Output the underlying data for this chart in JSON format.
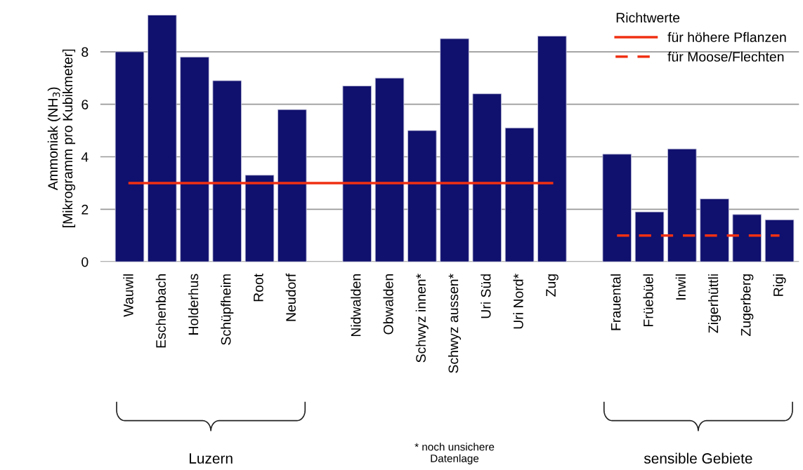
{
  "chart_data": {
    "type": "bar",
    "ylabel": "Ammoniak (NH$_{3}$)\n[Mikrogramm pro Kubikmeter]",
    "categories": [
      "Wauwil",
      "Eschenbach",
      "Holderhus",
      "Schüpfheim",
      "Root",
      "Neudorf",
      null,
      "Nidwalden",
      "Obwalden",
      "Schwyz innen*",
      "Schwyz aussen*",
      "Uri Süd",
      "Uri Nord*",
      "Zug",
      null,
      "Frauental",
      "Früebüel",
      "Inwil",
      "Zigerhüttli",
      "Zugerberg",
      "Rigi"
    ],
    "series": [
      {
        "color": "#10106e",
        "values": [
          8.0,
          9.4,
          7.8,
          6.9,
          3.3,
          5.8,
          null,
          6.7,
          7.0,
          5.0,
          8.5,
          6.4,
          5.1,
          8.6,
          null,
          4.1,
          1.9,
          4.3,
          2.4,
          1.8,
          1.6
        ]
      },
      {
        "type": "line",
        "name": "für höhere Pflanzen",
        "color": "#f03012",
        "line_style": "solid",
        "values": [
          3,
          3,
          3,
          3,
          3,
          3,
          3,
          3,
          3,
          3,
          3,
          3,
          3,
          3,
          null,
          null,
          null,
          null,
          null,
          null,
          null
        ]
      },
      {
        "type": "line",
        "name": "für Moose/Flechten",
        "color": "#f03012",
        "line_style": "dashed",
        "values": [
          null,
          null,
          null,
          null,
          null,
          null,
          null,
          null,
          null,
          null,
          null,
          null,
          null,
          null,
          null,
          1,
          1,
          1,
          1,
          1,
          1
        ]
      }
    ],
    "legend_title": "Richtwerte",
    "legend": "top right",
    "ylim": [
      0,
      9.4
    ],
    "yticks": [
      0,
      2,
      4,
      6,
      8
    ],
    "grid": "y",
    "annotations": [
      "Luzern",
      "* noch unsichere\nDatenlage",
      "sensible Gebiete"
    ]
  }
}
